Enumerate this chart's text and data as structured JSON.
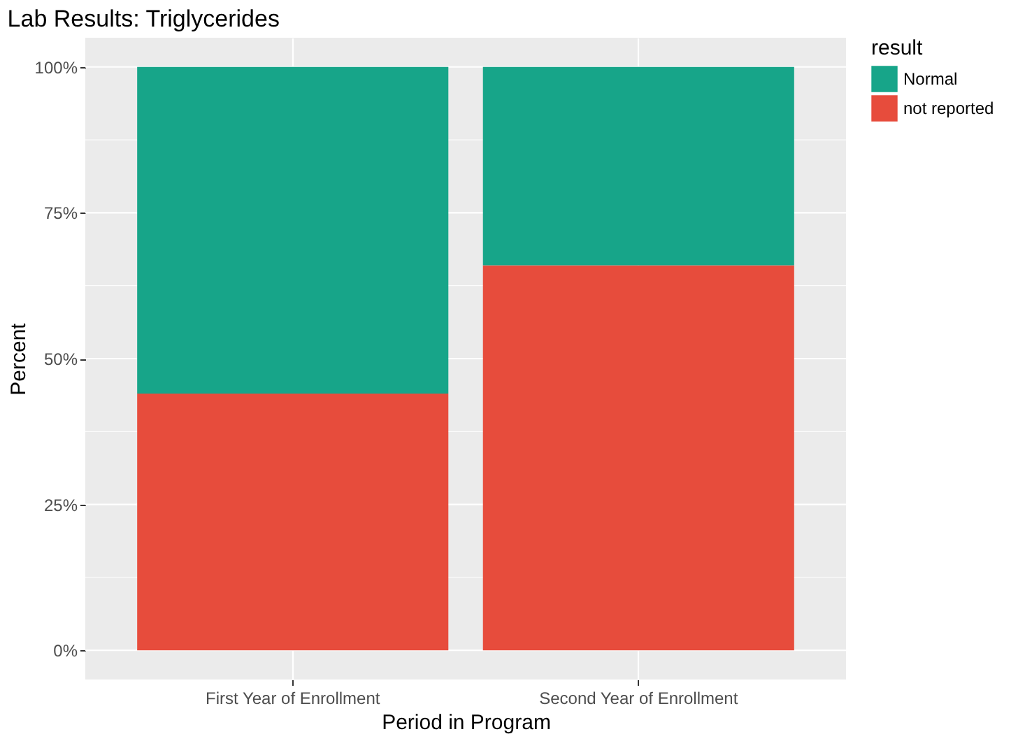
{
  "chart_data": {
    "type": "bar",
    "title": "Lab Results: Triglycerides",
    "xlabel": "Period in Program",
    "ylabel": "Percent",
    "legend_title": "result",
    "categories": [
      "First Year of Enrollment",
      "Second Year of Enrollment"
    ],
    "stacked": true,
    "series": [
      {
        "name": "not reported",
        "color": "#e74c3c",
        "values": [
          44,
          66
        ]
      },
      {
        "name": "Normal",
        "color": "#17a589",
        "values": [
          56,
          34
        ]
      }
    ],
    "ylim": [
      -5,
      105
    ],
    "yticks": [
      {
        "value": 0,
        "label": "0%"
      },
      {
        "value": 12.5,
        "label": null
      },
      {
        "value": 25,
        "label": "25%"
      },
      {
        "value": 37.5,
        "label": null
      },
      {
        "value": 50,
        "label": "50%"
      },
      {
        "value": 62.5,
        "label": null
      },
      {
        "value": 75,
        "label": "75%"
      },
      {
        "value": 87.5,
        "label": null
      },
      {
        "value": 100,
        "label": "100%"
      }
    ],
    "grid": true,
    "legend": "right"
  }
}
